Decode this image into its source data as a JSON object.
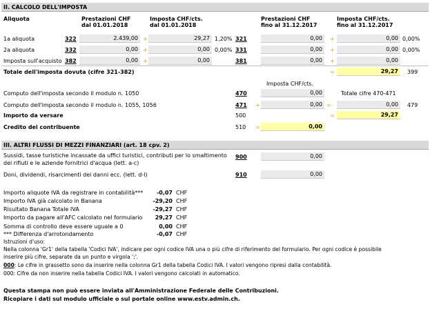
{
  "section2": {
    "title": "II. CALCOLO DELL'IMPOSTA",
    "col_aliquota": "Aliquota",
    "col_prest1": "Prestazioni CHF",
    "col_prest1_sub": "dal 01.01.2018",
    "col_imp1": "Imposta CHF/cts.",
    "col_imp1_sub": "dal 01.01.2018",
    "col_prest2": "Prestazioni CHF",
    "col_prest2_sub": "fino al 31.12.2017",
    "col_imp2": "Imposta CHF/cts.",
    "col_imp2_sub": "fino al 31.12.2017",
    "rows": [
      {
        "label": "1a aliquota",
        "code1": "322",
        "prest1": "2.439,00",
        "plus1": "+",
        "imp1": "29,27",
        "rate1": "1,20%",
        "code2": "321",
        "prest2": "0,00",
        "plus2": "+",
        "imp2": "0,00",
        "rate2": "0,00%"
      },
      {
        "label": "2a aliquota",
        "code1": "332",
        "prest1": "0,00",
        "plus1": "+",
        "imp1": "0,00",
        "rate1": "0,00%",
        "code2": "331",
        "prest2": "0,00",
        "plus2": "+",
        "imp2": "0,00",
        "rate2": "0,00%"
      },
      {
        "label": "Imposta sull'acquisto",
        "code1": "382",
        "prest1": "0,00",
        "plus1": "+",
        "imp1": "0,00",
        "rate1": "",
        "code2": "381",
        "prest2": "0,00",
        "plus2": "+",
        "imp2": "0,00",
        "rate2": ""
      }
    ],
    "total_label": "Totale dell'imposta dovuta (cifre 321-382)",
    "total_eq": "=",
    "total_value": "29,27",
    "total_code": "399",
    "imposta_header": "Imposta CHF/cts.",
    "computo1_label": "Computo dell'imposta secondo il modulo n. 1050",
    "computo1_code": "470",
    "computo1_value": "0,00",
    "computo_total_label": "Totale cifre 470-471",
    "computo2_label": "Computo dell'imposta secondo il modulo n. 1055, 1056",
    "computo2_code": "471",
    "computo2_plus": "+",
    "computo2_value": "0,00",
    "computo2_eq": "=",
    "computo2_minus": "-",
    "computo2_total": "0,00",
    "computo2_total_code": "479",
    "versare_label": "Importo da versare",
    "versare_code": "500",
    "versare_eq": "=",
    "versare_value": "29,27",
    "credito_label": "Credito del contribuente",
    "credito_code": "510",
    "credito_eq": "=",
    "credito_value": "0,00"
  },
  "section3": {
    "title": "III. ALTRI FLUSSI DI MEZZI FINANZIARI (art. 18 cpv. 2)",
    "row1_label_a": "Sussidi, tasse turistiche incassate da uffici turistici, contributi per lo smaltimento",
    "row1_label_b": "dei rifiuti e le aziende fornitrici d'acqua (lett. a-c)",
    "row1_code": "900",
    "row1_value": "0,00",
    "row2_label": "Doni, dividendi, risarcimenti dei danni ecc. (lett. d-l)",
    "row2_code": "910",
    "row2_value": "0,00"
  },
  "summary": {
    "rows": [
      {
        "label": "Importo aliquote IVA da registrare in contabilità***",
        "value": "-0,07",
        "unit": "CHF"
      },
      {
        "label": "Importo IVA già calcolato in Banana",
        "value": "-29,20",
        "unit": "CHF"
      },
      {
        "label": "Risultato Banana Totale IVA",
        "value": "-29,27",
        "unit": "CHF"
      },
      {
        "label": "Importo da pagare all'AFC calcolato nel formulario",
        "value": "29,27",
        "unit": "CHF"
      },
      {
        "label": "Somma di controllo deve essere uguale a 0",
        "value": "0,00",
        "unit": "CHF"
      },
      {
        "label": "*** Differenza d'arrotondamento",
        "value": "-0,07",
        "unit": "CHF"
      }
    ]
  },
  "instructions": {
    "title": "Istruzioni d'uso:",
    "line1": "Nella colonna 'Gr1' della tabella 'Codici IVA', indicare per ogni codice IVA una o più cifre di riferimento del formulario. Per ogni codice è possibile",
    "line2": "inserire più cifre, separate da un punto e virgola ';'.",
    "bold_code_marker": "000",
    "bold_code_text": ": Le cifre in grassetto sono da inserire nella colonna Gr1 della tabella Codici IVA. I valori vengono ripresi dalla contabilità.",
    "plain_code_marker": "000",
    "plain_code_text": ": Cifre da non inserire nella tabella Codici IVA. I valori vengono calcolati in automatico."
  },
  "footer": {
    "line1": "Questa stampa non può essere inviata all'Amministrazione Federale delle Contribuzioni.",
    "line2": "Ricopiare i dati sul modulo ufficiale o sul portale online www.estv.admin.ch."
  }
}
